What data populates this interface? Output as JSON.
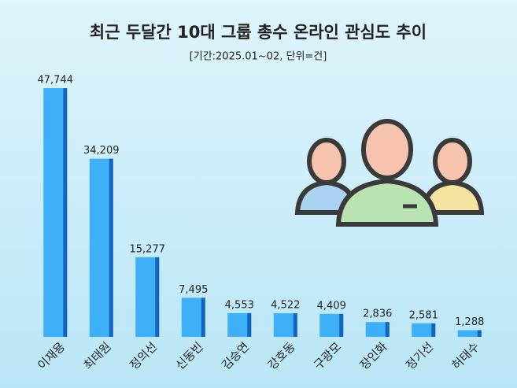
{
  "chart_data": {
    "type": "bar",
    "title": "최근 두달간 10대 그룹 총수 온라인 관심도 추이",
    "subtitle": "[기간:2025.01~02, 단위=건]",
    "categories": [
      "이재용",
      "최태원",
      "정의선",
      "신동빈",
      "김승연",
      "강호동",
      "구광모",
      "장인화",
      "정기선",
      "허태수"
    ],
    "values": [
      47744,
      34209,
      15277,
      7495,
      4553,
      4522,
      4409,
      2836,
      2581,
      1288
    ],
    "value_labels": [
      "47,744",
      "34,209",
      "15,277",
      "7,495",
      "4,553",
      "4,522",
      "4,409",
      "2,836",
      "2,581",
      "1,288"
    ],
    "color": "#3db0f7"
  }
}
